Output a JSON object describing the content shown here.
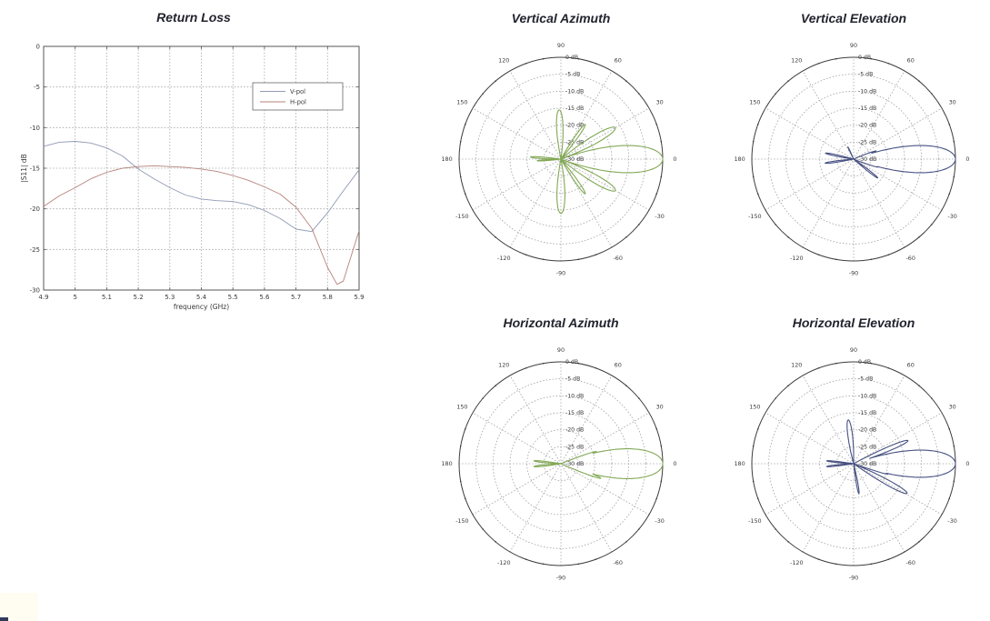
{
  "page": {
    "background": "#ffffff"
  },
  "colors": {
    "vpol_line": "#8f9ab5",
    "hpol_line": "#b5827a",
    "azimuth_line": "#82a855",
    "elevation_line": "#465082",
    "frame": "#555555",
    "grid_dots": "#a0a0a0",
    "tick_text": "#3a3a3a",
    "title_text": "#23232f"
  },
  "chart_data": [
    {
      "type": "line",
      "title": "Return Loss",
      "xlabel": "frequency (GHz)",
      "ylabel": "|S11| dB",
      "xlim": [
        4.9,
        5.9
      ],
      "ylim": [
        -30,
        0
      ],
      "xticks": [
        4.9,
        5.0,
        5.1,
        5.2,
        5.3,
        5.4,
        5.5,
        5.6,
        5.7,
        5.8,
        5.9
      ],
      "xtick_labels": [
        "4.9",
        "5",
        "5.1",
        "5.2",
        "5.3",
        "5.4",
        "5.5",
        "5.6",
        "5.7",
        "5.8",
        "5.9"
      ],
      "yticks": [
        0,
        -5,
        -10,
        -15,
        -20,
        -25,
        -30
      ],
      "ytick_labels": [
        "0",
        "-5",
        "-10",
        "-15",
        "-20",
        "-25",
        "-30"
      ],
      "grid": true,
      "legend": {
        "position": "upper-right-of-center",
        "entries": [
          "V-pol",
          "H-pol"
        ]
      },
      "series": [
        {
          "name": "V-pol",
          "color": "#8f9ab5",
          "x": [
            4.9,
            4.95,
            5.0,
            5.05,
            5.1,
            5.15,
            5.2,
            5.25,
            5.3,
            5.35,
            5.4,
            5.45,
            5.5,
            5.55,
            5.6,
            5.65,
            5.7,
            5.75,
            5.8,
            5.85,
            5.9
          ],
          "y": [
            -12.3,
            -11.8,
            -11.7,
            -11.9,
            -12.5,
            -13.5,
            -15.1,
            -16.3,
            -17.4,
            -18.3,
            -18.8,
            -19.0,
            -19.1,
            -19.5,
            -20.2,
            -21.2,
            -22.5,
            -22.8,
            -20.5,
            -17.8,
            -15.2
          ]
        },
        {
          "name": "H-pol",
          "color": "#b5827a",
          "x": [
            4.9,
            4.95,
            5.0,
            5.05,
            5.1,
            5.15,
            5.2,
            5.25,
            5.3,
            5.35,
            5.4,
            5.45,
            5.5,
            5.55,
            5.6,
            5.65,
            5.7,
            5.75,
            5.8,
            5.83,
            5.85,
            5.9
          ],
          "y": [
            -19.7,
            -18.4,
            -17.4,
            -16.3,
            -15.5,
            -15.0,
            -14.8,
            -14.7,
            -14.8,
            -14.9,
            -15.1,
            -15.4,
            -15.9,
            -16.5,
            -17.3,
            -18.2,
            -19.8,
            -22.4,
            -27.2,
            -29.3,
            -28.9,
            -22.7
          ]
        }
      ]
    },
    {
      "type": "polar",
      "title": "Vertical Azimuth",
      "line_color": "#82a855",
      "r_unit": "dB",
      "r_range_db": [
        -30,
        0
      ],
      "radial_ticks_db": [
        0,
        -5,
        -10,
        -15,
        -20,
        -25,
        -30
      ],
      "radial_labels": [
        "0 dB",
        "-5 dB",
        "-10 dB",
        "-15 dB",
        "-20 dB",
        "-25 dB",
        "-30 dB"
      ],
      "angle_labels": [
        0,
        30,
        60,
        90,
        120,
        150,
        180,
        -150,
        -120,
        -90,
        -60,
        -30
      ],
      "lobes": [
        {
          "angle_deg": 0,
          "peak_db": 0,
          "width_deg": 20
        },
        {
          "angle_deg": 30,
          "peak_db": -11.5,
          "width_deg": 12
        },
        {
          "angle_deg": -30,
          "peak_db": -11.5,
          "width_deg": 12
        },
        {
          "angle_deg": 55,
          "peak_db": -17.5,
          "width_deg": 8
        },
        {
          "angle_deg": -55,
          "peak_db": -17.5,
          "width_deg": 8
        },
        {
          "angle_deg": 92,
          "peak_db": -15.5,
          "width_deg": 14
        },
        {
          "angle_deg": -90,
          "peak_db": -14.0,
          "width_deg": 15
        },
        {
          "angle_deg": 176,
          "peak_db": -21.0,
          "width_deg": 7
        },
        {
          "angle_deg": -176,
          "peak_db": -23.0,
          "width_deg": 6
        }
      ]
    },
    {
      "type": "polar",
      "title": "Vertical Elevation",
      "line_color": "#465082",
      "r_unit": "dB",
      "r_range_db": [
        -30,
        0
      ],
      "radial_ticks_db": [
        0,
        -5,
        -10,
        -15,
        -20,
        -25,
        -30
      ],
      "radial_labels": [
        "0 dB",
        "-5 dB",
        "-10 dB",
        "-15 dB",
        "-20 dB",
        "-25 dB",
        "-30 dB"
      ],
      "angle_labels": [
        0,
        30,
        60,
        90,
        120,
        150,
        180,
        -150,
        -120,
        -90,
        -60,
        -30
      ],
      "lobes": [
        {
          "angle_deg": 0,
          "peak_db": 0,
          "width_deg": 20
        },
        {
          "angle_deg": 20,
          "peak_db": -23.0,
          "width_deg": 7
        },
        {
          "angle_deg": -18,
          "peak_db": -22.5,
          "width_deg": 7
        },
        {
          "angle_deg": -38,
          "peak_db": -21.0,
          "width_deg": 7
        },
        {
          "angle_deg": 115,
          "peak_db": -26.0,
          "width_deg": 6
        },
        {
          "angle_deg": 168,
          "peak_db": -21.5,
          "width_deg": 7
        },
        {
          "angle_deg": -172,
          "peak_db": -21.5,
          "width_deg": 7
        }
      ]
    },
    {
      "type": "polar",
      "title": "Horizontal Azimuth",
      "line_color": "#82a855",
      "r_unit": "dB",
      "r_range_db": [
        -30,
        0
      ],
      "radial_ticks_db": [
        0,
        -5,
        -10,
        -15,
        -20,
        -25,
        -30
      ],
      "radial_labels": [
        "0 dB",
        "-5 dB",
        "-10 dB",
        "-15 dB",
        "-20 dB",
        "-25 dB",
        "-30 dB"
      ],
      "angle_labels": [
        0,
        30,
        60,
        90,
        120,
        150,
        180,
        -150,
        -120,
        -90,
        -60,
        -30
      ],
      "lobes": [
        {
          "angle_deg": 0,
          "peak_db": 0,
          "width_deg": 22
        },
        {
          "angle_deg": 19,
          "peak_db": -19.0,
          "width_deg": 5
        },
        {
          "angle_deg": -20,
          "peak_db": -17.5,
          "width_deg": 6
        },
        {
          "angle_deg": 174,
          "peak_db": -22.0,
          "width_deg": 7
        },
        {
          "angle_deg": -174,
          "peak_db": -22.0,
          "width_deg": 7
        }
      ]
    },
    {
      "type": "polar",
      "title": "Horizontal Elevation",
      "line_color": "#465082",
      "r_unit": "dB",
      "r_range_db": [
        -30,
        0
      ],
      "radial_ticks_db": [
        0,
        -5,
        -10,
        -15,
        -20,
        -25,
        -30
      ],
      "radial_labels": [
        "0 dB",
        "-5 dB",
        "-10 dB",
        "-15 dB",
        "-20 dB",
        "-25 dB",
        "-30 dB"
      ],
      "angle_labels": [
        0,
        30,
        60,
        90,
        120,
        150,
        180,
        -150,
        -120,
        -90,
        -60,
        -30
      ],
      "lobes": [
        {
          "angle_deg": 0,
          "peak_db": 0,
          "width_deg": 20
        },
        {
          "angle_deg": 23,
          "peak_db": -12.6,
          "width_deg": 7
        },
        {
          "angle_deg": 15,
          "peak_db": -19.0,
          "width_deg": 4
        },
        {
          "angle_deg": -29,
          "peak_db": -12.0,
          "width_deg": 8
        },
        {
          "angle_deg": -17,
          "peak_db": -19.5,
          "width_deg": 4
        },
        {
          "angle_deg": 97,
          "peak_db": -17.0,
          "width_deg": 12
        },
        {
          "angle_deg": -80,
          "peak_db": -21.0,
          "width_deg": 7
        },
        {
          "angle_deg": 174,
          "peak_db": -22.0,
          "width_deg": 6
        },
        {
          "angle_deg": -174,
          "peak_db": -22.0,
          "width_deg": 6
        }
      ]
    }
  ]
}
